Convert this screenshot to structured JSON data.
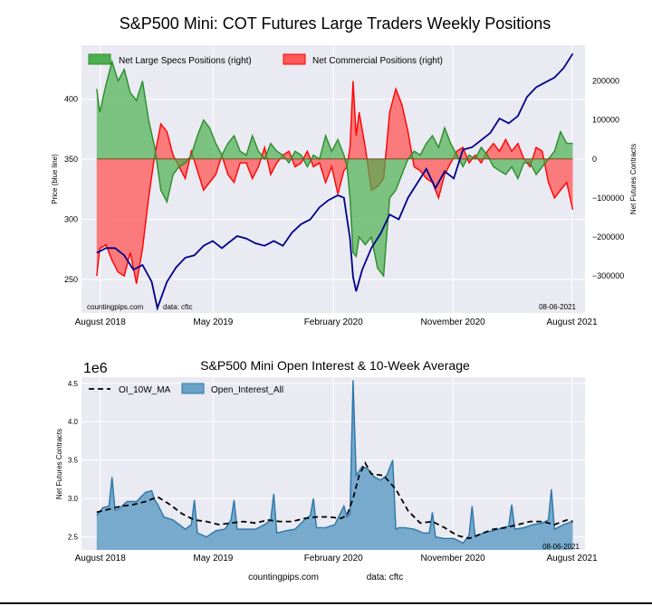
{
  "colors": {
    "plot_bg": "#eaeaf2",
    "grid": "#ffffff",
    "price_line": "#00008b",
    "specs_fill": "#4caf50",
    "specs_line": "#2a8c2a",
    "comm_fill": "#ff5a5a",
    "comm_line": "#ff0000",
    "oi_fill": "#6aa3c8",
    "oi_line": "#2c76a8",
    "ma_line": "#000000",
    "bottom_rule": "#000000"
  },
  "chart_data": [
    {
      "type": "line",
      "title": "S&P500 Mini: COT Futures Large Traders Weekly Positions",
      "ylabel": "Price (blue line)",
      "y2label": "Net Futures Contracts",
      "ylim": [
        222,
        445
      ],
      "y2lim": [
        -395000,
        292000
      ],
      "yticks": [
        "250",
        "300",
        "350",
        "400"
      ],
      "y2ticks": [
        "200000",
        "100000",
        "0",
        "−100000",
        "−200000",
        "−300000"
      ],
      "xticks": [
        "August 2018",
        "May 2019",
        "February 2020",
        "November 2020",
        "August 2021"
      ],
      "xlim": [
        "2018-07-03",
        "2021-08-31"
      ],
      "grid": true,
      "legend_position": "top-left",
      "date_label": "08-06-2021",
      "source_left": "countingpips.com",
      "source_right": "data: cftc",
      "price": {
        "x": [
          "2018-08-07",
          "2018-08-28",
          "2018-09-18",
          "2018-10-09",
          "2018-10-30",
          "2018-11-20",
          "2018-12-11",
          "2018-12-24",
          "2019-01-15",
          "2019-02-05",
          "2019-02-26",
          "2019-03-19",
          "2019-04-09",
          "2019-04-30",
          "2019-05-21",
          "2019-06-04",
          "2019-06-25",
          "2019-07-16",
          "2019-08-06",
          "2019-08-27",
          "2019-09-17",
          "2019-10-08",
          "2019-10-29",
          "2019-11-19",
          "2019-12-10",
          "2019-12-31",
          "2020-01-21",
          "2020-02-11",
          "2020-02-25",
          "2020-03-10",
          "2020-03-17",
          "2020-03-24",
          "2020-04-07",
          "2020-04-28",
          "2020-05-19",
          "2020-06-09",
          "2020-06-30",
          "2020-07-21",
          "2020-08-11",
          "2020-09-01",
          "2020-09-22",
          "2020-10-13",
          "2020-11-03",
          "2020-11-24",
          "2020-12-15",
          "2021-01-05",
          "2021-01-26",
          "2021-02-16",
          "2021-03-09",
          "2021-03-30",
          "2021-04-20",
          "2021-05-11",
          "2021-06-01",
          "2021-06-22",
          "2021-07-13",
          "2021-08-03"
        ],
        "y": [
          272,
          276,
          276,
          270,
          258,
          262,
          248,
          226,
          248,
          260,
          268,
          270,
          278,
          282,
          276,
          280,
          286,
          284,
          280,
          278,
          282,
          278,
          289,
          296,
          300,
          310,
          316,
          320,
          318,
          284,
          252,
          240,
          258,
          276,
          288,
          304,
          300,
          318,
          330,
          342,
          326,
          340,
          334,
          358,
          360,
          366,
          372,
          384,
          380,
          386,
          402,
          410,
          414,
          418,
          426,
          438
        ]
      },
      "series": [
        {
          "name": "Net Large Specs Positions (right)",
          "x": [
            "2018-08-07",
            "2018-08-14",
            "2018-08-28",
            "2018-09-11",
            "2018-09-25",
            "2018-10-09",
            "2018-10-23",
            "2018-11-06",
            "2018-11-20",
            "2018-12-04",
            "2018-12-18",
            "2019-01-01",
            "2019-01-15",
            "2019-01-29",
            "2019-02-12",
            "2019-02-26",
            "2019-03-12",
            "2019-03-26",
            "2019-04-09",
            "2019-04-23",
            "2019-05-07",
            "2019-05-21",
            "2019-06-04",
            "2019-06-18",
            "2019-07-02",
            "2019-07-16",
            "2019-07-30",
            "2019-08-13",
            "2019-08-27",
            "2019-09-10",
            "2019-09-24",
            "2019-10-08",
            "2019-10-22",
            "2019-11-05",
            "2019-11-19",
            "2019-12-03",
            "2019-12-17",
            "2019-12-31",
            "2020-01-14",
            "2020-01-28",
            "2020-02-11",
            "2020-02-25",
            "2020-03-03",
            "2020-03-10",
            "2020-03-17",
            "2020-03-24",
            "2020-03-31",
            "2020-04-14",
            "2020-04-28",
            "2020-05-12",
            "2020-05-26",
            "2020-06-09",
            "2020-06-23",
            "2020-07-07",
            "2020-07-21",
            "2020-08-04",
            "2020-08-18",
            "2020-09-01",
            "2020-09-15",
            "2020-09-29",
            "2020-10-13",
            "2020-10-27",
            "2020-11-10",
            "2020-11-24",
            "2020-12-08",
            "2020-12-22",
            "2021-01-05",
            "2021-01-19",
            "2021-02-02",
            "2021-02-16",
            "2021-03-02",
            "2021-03-16",
            "2021-03-30",
            "2021-04-13",
            "2021-04-27",
            "2021-05-11",
            "2021-05-25",
            "2021-06-08",
            "2021-06-22",
            "2021-07-06",
            "2021-07-20",
            "2021-08-03"
          ],
          "y": [
            180000,
            120000,
            190000,
            250000,
            200000,
            230000,
            170000,
            150000,
            200000,
            100000,
            30000,
            -80000,
            -110000,
            -40000,
            -20000,
            -10000,
            10000,
            60000,
            100000,
            80000,
            40000,
            10000,
            40000,
            60000,
            20000,
            10000,
            60000,
            20000,
            0,
            40000,
            20000,
            10000,
            -10000,
            20000,
            10000,
            -20000,
            10000,
            0,
            60000,
            20000,
            50000,
            10000,
            -20000,
            -100000,
            -240000,
            -250000,
            -200000,
            -220000,
            -200000,
            -280000,
            -300000,
            -100000,
            -80000,
            -40000,
            0,
            20000,
            10000,
            40000,
            60000,
            30000,
            80000,
            40000,
            10000,
            -20000,
            10000,
            0,
            30000,
            10000,
            -20000,
            -30000,
            -40000,
            -20000,
            -50000,
            -10000,
            -10000,
            -40000,
            -20000,
            0,
            20000,
            70000,
            40000,
            40000
          ]
        },
        {
          "name": "Net Commercial Positions (right)",
          "x": [
            "2018-08-07",
            "2018-08-14",
            "2018-08-28",
            "2018-09-11",
            "2018-09-25",
            "2018-10-09",
            "2018-10-23",
            "2018-11-06",
            "2018-11-20",
            "2018-12-04",
            "2018-12-18",
            "2019-01-01",
            "2019-01-15",
            "2019-01-29",
            "2019-02-12",
            "2019-02-26",
            "2019-03-12",
            "2019-03-26",
            "2019-04-09",
            "2019-04-23",
            "2019-05-07",
            "2019-05-21",
            "2019-06-04",
            "2019-06-18",
            "2019-07-02",
            "2019-07-16",
            "2019-07-30",
            "2019-08-13",
            "2019-08-27",
            "2019-09-10",
            "2019-09-24",
            "2019-10-08",
            "2019-10-22",
            "2019-11-05",
            "2019-11-19",
            "2019-12-03",
            "2019-12-17",
            "2019-12-31",
            "2020-01-14",
            "2020-01-28",
            "2020-02-11",
            "2020-02-25",
            "2020-03-03",
            "2020-03-10",
            "2020-03-17",
            "2020-03-24",
            "2020-03-31",
            "2020-04-14",
            "2020-04-28",
            "2020-05-12",
            "2020-05-26",
            "2020-06-09",
            "2020-06-23",
            "2020-07-07",
            "2020-07-21",
            "2020-08-04",
            "2020-08-18",
            "2020-09-01",
            "2020-09-15",
            "2020-09-29",
            "2020-10-13",
            "2020-10-27",
            "2020-11-10",
            "2020-11-24",
            "2020-12-08",
            "2020-12-22",
            "2021-01-05",
            "2021-01-19",
            "2021-02-02",
            "2021-02-16",
            "2021-03-02",
            "2021-03-16",
            "2021-03-30",
            "2021-04-13",
            "2021-04-27",
            "2021-05-11",
            "2021-05-25",
            "2021-06-08",
            "2021-06-22",
            "2021-07-06",
            "2021-07-20",
            "2021-08-03"
          ],
          "y": [
            -300000,
            -230000,
            -220000,
            -260000,
            -290000,
            -300000,
            -240000,
            -320000,
            -230000,
            -100000,
            10000,
            90000,
            70000,
            10000,
            -20000,
            -50000,
            20000,
            -30000,
            -80000,
            -60000,
            -40000,
            10000,
            -40000,
            -60000,
            -10000,
            -10000,
            -50000,
            -20000,
            30000,
            -40000,
            -10000,
            10000,
            20000,
            -20000,
            -10000,
            20000,
            -20000,
            -10000,
            -60000,
            -20000,
            -90000,
            -30000,
            -20000,
            30000,
            200000,
            60000,
            120000,
            30000,
            -80000,
            -70000,
            -50000,
            120000,
            180000,
            140000,
            70000,
            -20000,
            -30000,
            -50000,
            -60000,
            -100000,
            -40000,
            -10000,
            20000,
            30000,
            -10000,
            10000,
            -10000,
            20000,
            40000,
            20000,
            50000,
            20000,
            40000,
            0,
            -20000,
            30000,
            20000,
            -60000,
            -100000,
            -80000,
            -60000,
            -130000
          ]
        }
      ]
    },
    {
      "type": "area",
      "title": "S&P500 Mini Open Interest & 10-Week Average",
      "ylabel": "Net Futures Contracts",
      "y_scale_label": "1e6",
      "ylim": [
        2.33,
        4.58
      ],
      "yticks": [
        "2.5",
        "3.0",
        "3.5",
        "4.0",
        "4.5"
      ],
      "xticks": [
        "August 2018",
        "May 2019",
        "February 2020",
        "November 2020",
        "August 2021"
      ],
      "xlim": [
        "2018-07-03",
        "2021-08-31"
      ],
      "grid": true,
      "legend_position": "top-left",
      "date_label": "08-06-2021",
      "series": [
        {
          "name": "OI_10W_MA",
          "x": [
            "2018-08-07",
            "2018-09-04",
            "2018-10-02",
            "2018-10-30",
            "2018-11-27",
            "2018-12-25",
            "2019-01-22",
            "2019-02-19",
            "2019-03-19",
            "2019-04-16",
            "2019-05-14",
            "2019-06-11",
            "2019-07-09",
            "2019-08-06",
            "2019-09-03",
            "2019-10-01",
            "2019-10-29",
            "2019-11-26",
            "2019-12-24",
            "2020-01-21",
            "2020-02-18",
            "2020-03-03",
            "2020-03-17",
            "2020-03-31",
            "2020-04-14",
            "2020-04-28",
            "2020-05-26",
            "2020-06-23",
            "2020-07-21",
            "2020-08-18",
            "2020-09-15",
            "2020-10-13",
            "2020-11-10",
            "2020-12-08",
            "2021-01-05",
            "2021-02-02",
            "2021-03-02",
            "2021-03-30",
            "2021-04-27",
            "2021-05-25",
            "2021-06-22",
            "2021-07-20",
            "2021-08-03"
          ],
          "y": [
            2.82,
            2.86,
            2.9,
            2.92,
            2.96,
            3.02,
            2.92,
            2.8,
            2.72,
            2.7,
            2.66,
            2.68,
            2.7,
            2.68,
            2.72,
            2.7,
            2.7,
            2.74,
            2.76,
            2.76,
            2.74,
            2.78,
            3.0,
            3.3,
            3.46,
            3.32,
            3.3,
            3.12,
            2.84,
            2.68,
            2.7,
            2.62,
            2.52,
            2.48,
            2.54,
            2.6,
            2.62,
            2.66,
            2.7,
            2.7,
            2.66,
            2.72,
            2.7
          ]
        },
        {
          "name": "Open_Interest_All",
          "x": [
            "2018-08-07",
            "2018-08-21",
            "2018-09-04",
            "2018-09-11",
            "2018-09-18",
            "2018-09-25",
            "2018-10-16",
            "2018-11-06",
            "2018-11-27",
            "2018-12-11",
            "2018-12-18",
            "2018-12-25",
            "2019-01-08",
            "2019-01-29",
            "2019-02-26",
            "2019-03-12",
            "2019-03-19",
            "2019-03-26",
            "2019-04-16",
            "2019-05-07",
            "2019-05-28",
            "2019-06-11",
            "2019-06-18",
            "2019-06-25",
            "2019-07-16",
            "2019-08-06",
            "2019-08-27",
            "2019-09-10",
            "2019-09-17",
            "2019-09-24",
            "2019-10-15",
            "2019-11-05",
            "2019-11-26",
            "2019-12-10",
            "2019-12-17",
            "2019-12-24",
            "2020-01-14",
            "2020-02-04",
            "2020-02-25",
            "2020-03-03",
            "2020-03-10",
            "2020-03-17",
            "2020-03-24",
            "2020-04-07",
            "2020-04-21",
            "2020-05-05",
            "2020-05-19",
            "2020-06-02",
            "2020-06-16",
            "2020-06-23",
            "2020-06-30",
            "2020-07-14",
            "2020-08-04",
            "2020-08-25",
            "2020-09-08",
            "2020-09-15",
            "2020-09-22",
            "2020-10-13",
            "2020-11-03",
            "2020-11-24",
            "2020-12-08",
            "2020-12-15",
            "2020-12-22",
            "2021-01-12",
            "2021-02-02",
            "2021-02-23",
            "2021-03-09",
            "2021-03-16",
            "2021-03-23",
            "2021-04-13",
            "2021-05-04",
            "2021-05-25",
            "2021-06-08",
            "2021-06-15",
            "2021-06-22",
            "2021-07-13",
            "2021-08-03"
          ],
          "y": [
            2.78,
            2.88,
            2.9,
            3.28,
            2.85,
            2.86,
            2.96,
            2.96,
            3.08,
            3.1,
            2.98,
            2.92,
            2.76,
            2.72,
            2.6,
            2.66,
            2.98,
            2.55,
            2.5,
            2.58,
            2.6,
            2.72,
            2.98,
            2.6,
            2.6,
            2.6,
            2.66,
            2.72,
            3.06,
            2.55,
            2.58,
            2.6,
            2.72,
            2.78,
            3.0,
            2.62,
            2.62,
            2.66,
            2.9,
            2.76,
            2.8,
            4.54,
            3.3,
            3.42,
            3.38,
            3.28,
            3.24,
            3.3,
            3.5,
            2.6,
            2.62,
            2.62,
            2.6,
            2.55,
            2.55,
            2.82,
            2.5,
            2.48,
            2.48,
            2.42,
            2.52,
            2.9,
            2.5,
            2.56,
            2.58,
            2.62,
            2.64,
            2.92,
            2.6,
            2.62,
            2.66,
            2.68,
            2.72,
            3.12,
            2.6,
            2.66,
            2.7
          ]
        }
      ]
    }
  ],
  "footer": {
    "site": "countingpips.com",
    "source": "data: cftc"
  }
}
